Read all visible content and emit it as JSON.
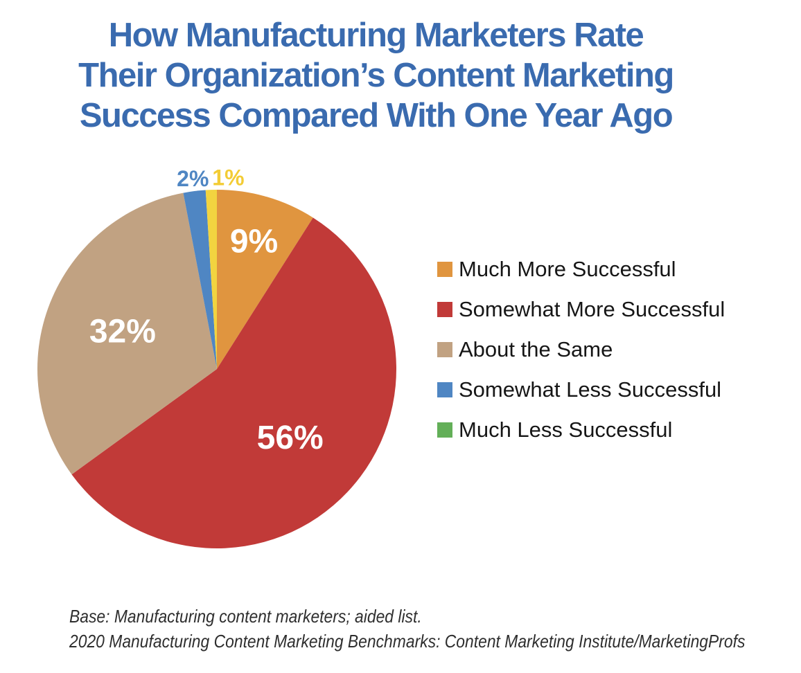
{
  "page": {
    "background": "#FFFFFF",
    "title_color": "#3A6BAF"
  },
  "header": {
    "title": "How Manufacturing Marketers Rate Their Organization’s Content Marketing Success Compared With One Year Ago",
    "title_lines": [
      "How Manufacturing Marketers Rate",
      "Their Organization’s Content Marketing",
      "Success Compared With One Year Ago"
    ]
  },
  "chart_data": {
    "type": "pie",
    "title": "How Manufacturing Marketers Rate Their Organization’s Content Marketing Success Compared With One Year Ago",
    "start_angle_deg": 0,
    "direction": "clockwise",
    "legend_position": "right",
    "categories": [
      "Much More Successful",
      "Somewhat More Successful",
      "About the Same",
      "Somewhat Less Successful",
      "Much Less Successful"
    ],
    "values": [
      9,
      56,
      32,
      2,
      1
    ],
    "slices": [
      {
        "label": "Much More Successful",
        "value": 9,
        "color": "#E0953F",
        "data_label": "9%",
        "data_label_color": "#FFFFFF",
        "data_label_position": "inside"
      },
      {
        "label": "Somewhat More Successful",
        "value": 56,
        "color": "#C13A38",
        "data_label": "56%",
        "data_label_color": "#FFFFFF",
        "data_label_position": "inside"
      },
      {
        "label": "About the Same",
        "value": 32,
        "color": "#C1A282",
        "data_label": "32%",
        "data_label_color": "#FFFFFF",
        "data_label_position": "inside"
      },
      {
        "label": "Somewhat Less Successful",
        "value": 2,
        "color": "#4F86C3",
        "data_label": "2%",
        "data_label_color": "#4F86C3",
        "data_label_position": "outside"
      },
      {
        "label": "Much Less Successful",
        "value": 1,
        "color": "#F2D440",
        "data_label": "1%",
        "data_label_color": "#F3CC35",
        "data_label_position": "outside"
      }
    ],
    "legend": [
      {
        "label": "Much More Successful",
        "color": "#E0953F"
      },
      {
        "label": "Somewhat More Successful",
        "color": "#C13A38"
      },
      {
        "label": "About the Same",
        "color": "#C1A282"
      },
      {
        "label": "Somewhat Less Successful",
        "color": "#4F86C3"
      },
      {
        "label": "Much Less Successful",
        "color": "#63AF58"
      }
    ]
  },
  "footer": {
    "line1": "Base: Manufacturing content marketers; aided list.",
    "line2": "2020 Manufacturing Content Marketing Benchmarks: Content Marketing Institute/MarketingProfs"
  }
}
